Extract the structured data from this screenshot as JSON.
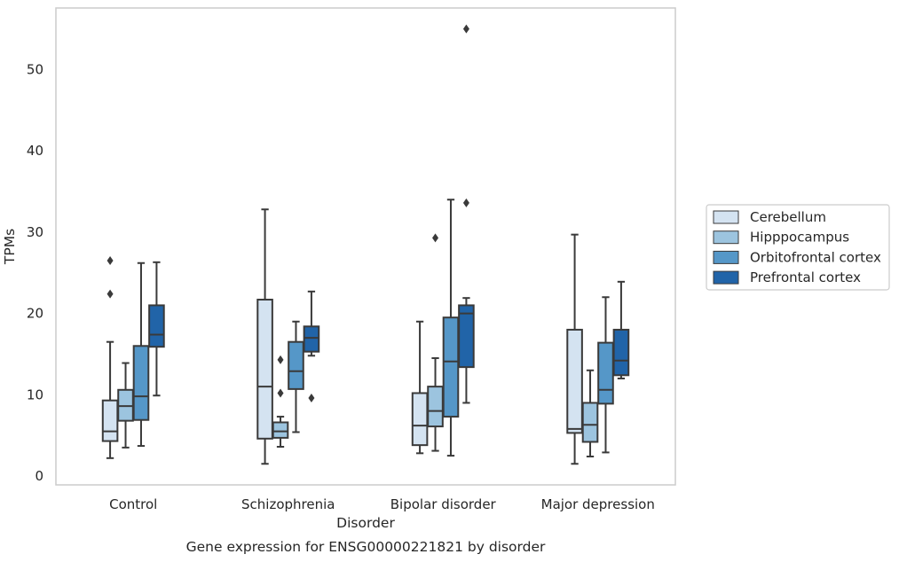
{
  "chart_data": {
    "type": "box",
    "title": "Gene expression for ENSG00000221821 by disorder",
    "xlabel": "Disorder",
    "ylabel": "TPMs",
    "ylim": [
      -1,
      58
    ],
    "yticks": [
      0,
      10,
      20,
      30,
      40,
      50
    ],
    "grid": "y",
    "legend_position": "right",
    "categories": [
      "Control",
      "Schizophrenia",
      "Bipolar disorder",
      "Major depression"
    ],
    "series": [
      {
        "name": "Cerebellum",
        "color": "#d4e3f1",
        "boxes": [
          {
            "whisker_low": 2.2,
            "q1": 4.3,
            "median": 5.5,
            "q3": 9.3,
            "whisker_high": 16.5,
            "outliers": [
              22.4,
              26.5
            ]
          },
          {
            "whisker_low": 1.5,
            "q1": 4.6,
            "median": 11.0,
            "q3": 21.7,
            "whisker_high": 32.8,
            "outliers": []
          },
          {
            "whisker_low": 2.8,
            "q1": 3.8,
            "median": 6.2,
            "q3": 10.2,
            "whisker_high": 19.0,
            "outliers": []
          },
          {
            "whisker_low": 1.5,
            "q1": 5.3,
            "median": 5.8,
            "q3": 18.0,
            "whisker_high": 29.7,
            "outliers": []
          }
        ]
      },
      {
        "name": "Hipppocampus",
        "color": "#9cc4df",
        "boxes": [
          {
            "whisker_low": 3.5,
            "q1": 6.8,
            "median": 8.6,
            "q3": 10.6,
            "whisker_high": 13.9,
            "outliers": []
          },
          {
            "whisker_low": 3.6,
            "q1": 4.7,
            "median": 5.5,
            "q3": 6.6,
            "whisker_high": 7.3,
            "outliers": [
              10.2,
              14.3
            ]
          },
          {
            "whisker_low": 3.1,
            "q1": 6.1,
            "median": 8.0,
            "q3": 11.0,
            "whisker_high": 14.5,
            "outliers": [
              29.3
            ]
          },
          {
            "whisker_low": 2.4,
            "q1": 4.2,
            "median": 6.3,
            "q3": 9.0,
            "whisker_high": 13.0,
            "outliers": []
          }
        ]
      },
      {
        "name": "Orbitofrontal cortex",
        "color": "#5597c8",
        "boxes": [
          {
            "whisker_low": 3.7,
            "q1": 6.9,
            "median": 9.8,
            "q3": 16.0,
            "whisker_high": 26.2,
            "outliers": []
          },
          {
            "whisker_low": 5.4,
            "q1": 10.7,
            "median": 12.9,
            "q3": 16.5,
            "whisker_high": 19.0,
            "outliers": []
          },
          {
            "whisker_low": 2.5,
            "q1": 7.3,
            "median": 14.1,
            "q3": 19.5,
            "whisker_high": 34.0,
            "outliers": []
          },
          {
            "whisker_low": 2.9,
            "q1": 8.9,
            "median": 10.6,
            "q3": 16.4,
            "whisker_high": 22.0,
            "outliers": []
          }
        ]
      },
      {
        "name": "Prefrontal cortex",
        "color": "#2164a8",
        "boxes": [
          {
            "whisker_low": 9.9,
            "q1": 15.9,
            "median": 17.4,
            "q3": 21.0,
            "whisker_high": 26.3,
            "outliers": []
          },
          {
            "whisker_low": 14.8,
            "q1": 15.3,
            "median": 17.0,
            "q3": 18.4,
            "whisker_high": 22.7,
            "outliers": [
              9.6
            ]
          },
          {
            "whisker_low": 9.0,
            "q1": 13.4,
            "median": 20.0,
            "q3": 21.0,
            "whisker_high": 21.9,
            "outliers": [
              33.6,
              55.0
            ]
          },
          {
            "whisker_low": 12.0,
            "q1": 12.4,
            "median": 14.2,
            "q3": 18.0,
            "whisker_high": 23.9,
            "outliers": []
          }
        ]
      }
    ]
  }
}
